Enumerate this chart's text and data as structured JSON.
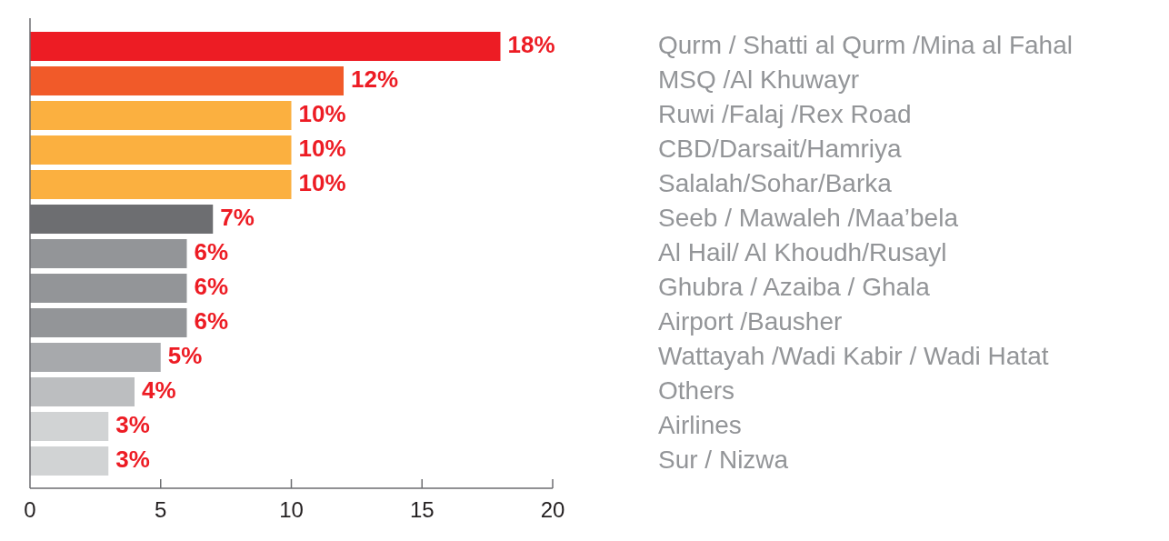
{
  "chart_data": {
    "type": "bar",
    "orientation": "horizontal",
    "categories": [
      "Qurm / Shatti al Qurm /Mina al Fahal",
      "MSQ /Al Khuwayr",
      "Ruwi /Falaj /Rex Road",
      "CBD/Darsait/Hamriya",
      "Salalah/Sohar/Barka",
      "Seeb / Mawaleh /Maa’bela",
      "Al Hail/ Al Khoudh/Rusayl",
      "Ghubra / Azaiba / Ghala",
      "Airport /Bausher",
      "Wattayah /Wadi Kabir / Wadi Hatat",
      "Others",
      "Airlines",
      "Sur / Nizwa"
    ],
    "values": [
      18,
      12,
      10,
      10,
      10,
      7,
      6,
      6,
      6,
      5,
      4,
      3,
      3
    ],
    "colors": [
      "#ed1c24",
      "#f15a29",
      "#fbb040",
      "#fbb040",
      "#fbb040",
      "#6d6e71",
      "#939598",
      "#939598",
      "#939598",
      "#a7a9ac",
      "#bcbec0",
      "#d1d3d4",
      "#d1d3d4"
    ],
    "value_labels": [
      "18%",
      "12%",
      "10%",
      "10%",
      "10%",
      "7%",
      "6%",
      "6%",
      "6%",
      "5%",
      "4%",
      "3%",
      "3%"
    ],
    "xlim": [
      0,
      20
    ],
    "xticks": [
      0,
      5,
      10,
      15,
      20
    ]
  }
}
